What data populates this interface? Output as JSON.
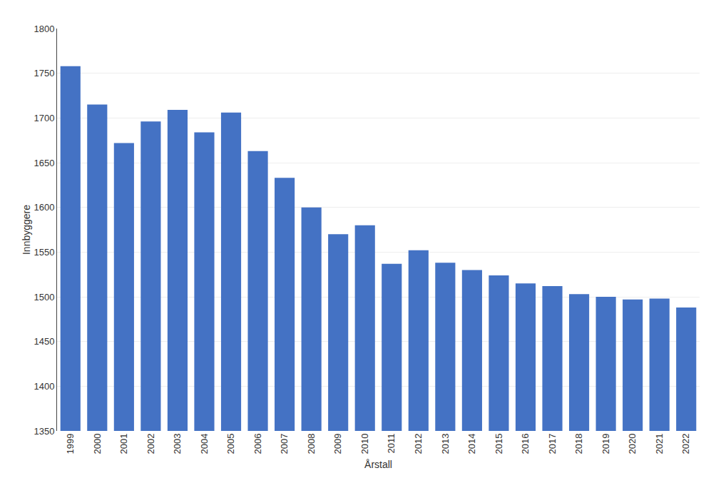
{
  "chart_data": {
    "type": "bar",
    "xlabel": "Årstall",
    "ylabel": "Innbyggere",
    "categories": [
      "1999",
      "2000",
      "2001",
      "2002",
      "2003",
      "2004",
      "2005",
      "2006",
      "2007",
      "2008",
      "2009",
      "2010",
      "2011",
      "2012",
      "2013",
      "2014",
      "2015",
      "2016",
      "2017",
      "2018",
      "2019",
      "2020",
      "2021",
      "2022"
    ],
    "values": [
      1758,
      1715,
      1672,
      1696,
      1709,
      1684,
      1706,
      1663,
      1633,
      1600,
      1570,
      1580,
      1537,
      1552,
      1538,
      1530,
      1524,
      1515,
      1512,
      1503,
      1500,
      1497,
      1498,
      1488
    ],
    "color": "#4472C4",
    "ylim": [
      1350,
      1800
    ],
    "yticks": [
      1350,
      1400,
      1450,
      1500,
      1550,
      1600,
      1650,
      1700,
      1750,
      1800
    ],
    "grid": true
  }
}
